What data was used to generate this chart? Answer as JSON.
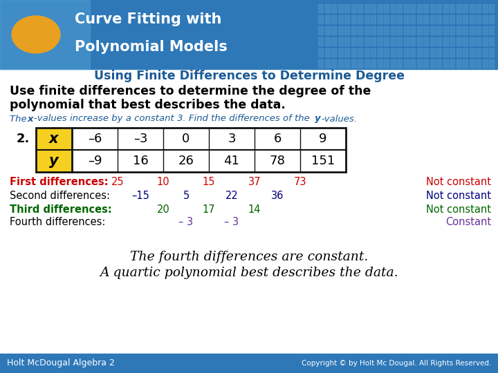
{
  "title_line1": "Curve Fitting with",
  "title_line2": "Polynomial Models",
  "subtitle": "Using Finite Differences to Determine Degree",
  "bold_text_line1": "Use finite differences to determine the degree of the",
  "bold_text_line2": "polynomial that best describes the data.",
  "problem_number": "2.",
  "x_label": "x",
  "y_label": "y",
  "x_values": [
    "–6",
    "–3",
    "0",
    "3",
    "6",
    "9"
  ],
  "y_values": [
    "–9",
    "16",
    "26",
    "41",
    "78",
    "151"
  ],
  "first_diff_vals": [
    "25",
    "10",
    "15",
    "37",
    "73"
  ],
  "second_diff_vals": [
    "–15",
    "5",
    "22",
    "36"
  ],
  "third_diff_vals": [
    "20",
    "17",
    "14"
  ],
  "fourth_diff_vals": [
    "– 3",
    "– 3"
  ],
  "conclusion_line1": "The fourth differences are constant.",
  "conclusion_line2": "A quartic polynomial best describes the data.",
  "footer_left": "Holt McDougal Algebra 2",
  "footer_right": "Copyright © by Holt Mc Dougal. All Rights Reserved.",
  "header_bg": "#2e78b8",
  "header_title_color": "#ffffff",
  "subtitle_color": "#1a5a96",
  "body_bg": "#ffffff",
  "table_header_bg": "#f5d020",
  "table_border_color": "#111111",
  "footer_bg": "#2e78b8",
  "footer_text_color": "#ffffff",
  "color_first": "#cc0000",
  "color_second": "#000080",
  "color_third": "#006600",
  "color_fourth": "#663399",
  "small_text_color": "#1a5a96"
}
